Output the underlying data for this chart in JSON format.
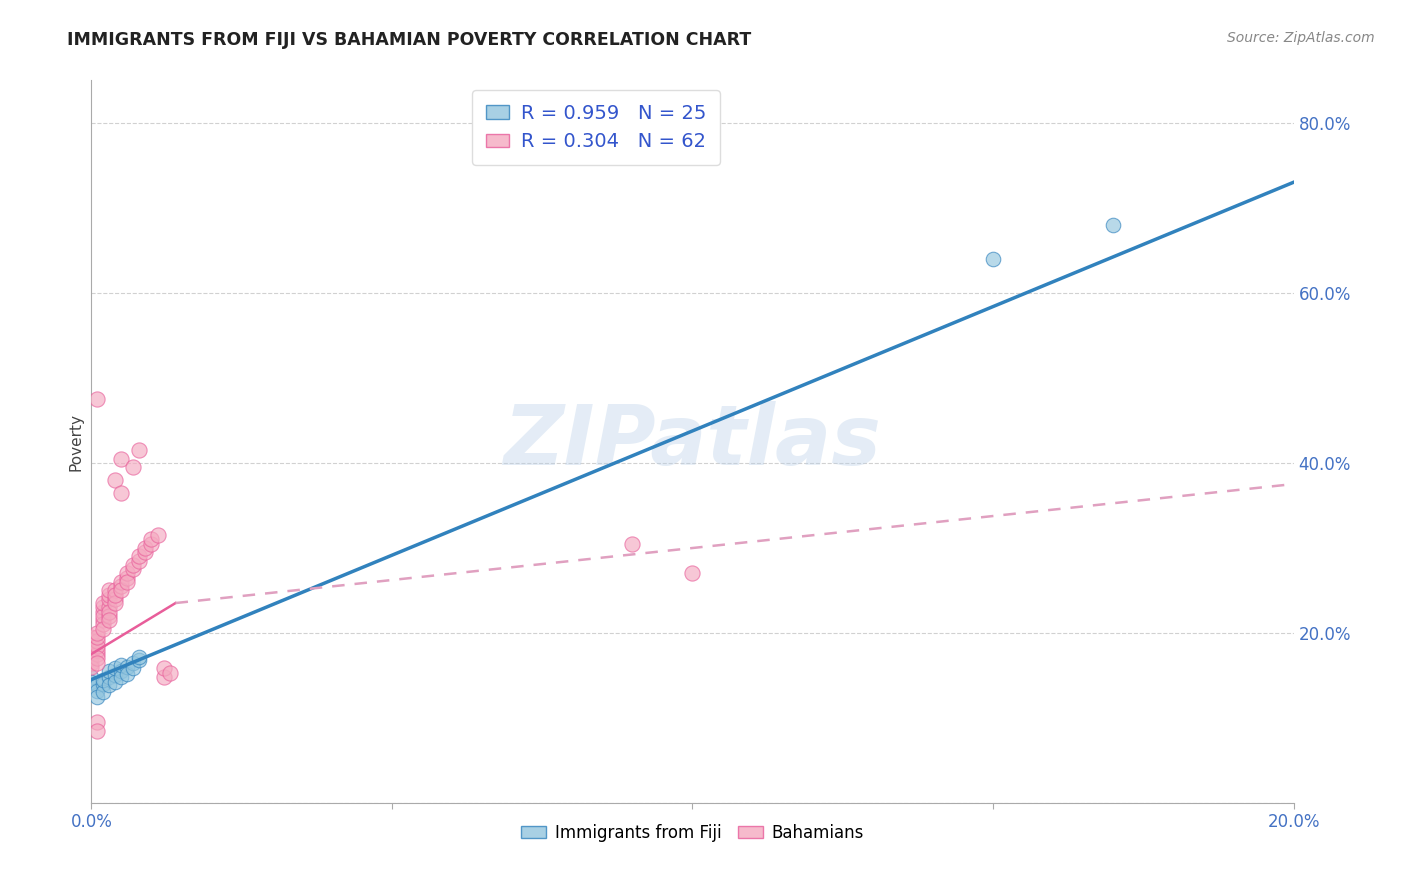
{
  "title": "IMMIGRANTS FROM FIJI VS BAHAMIAN POVERTY CORRELATION CHART",
  "source": "Source: ZipAtlas.com",
  "ylabel_label": "Poverty",
  "x_min": 0.0,
  "x_max": 0.2,
  "y_min": 0.0,
  "y_max": 0.85,
  "color_fiji": "#92c5de",
  "color_bahamian": "#f4a9c0",
  "trendline_fiji_color": "#3182bd",
  "trendline_bahamian_solid_color": "#e85d9a",
  "trendline_bahamian_dashed_color": "#e0a0c0",
  "legend_R_fiji": "R = 0.959",
  "legend_N_fiji": "N = 25",
  "legend_R_bahamian": "R = 0.304",
  "legend_N_bahamian": "N = 62",
  "watermark": "ZIPatlas",
  "fiji_trendline": [
    0.0,
    0.145,
    0.2,
    0.73
  ],
  "bahamian_trendline_solid": [
    0.0,
    0.175,
    0.014,
    0.235
  ],
  "bahamian_trendline_dashed": [
    0.014,
    0.235,
    0.2,
    0.375
  ],
  "fiji_points": [
    [
      0.0,
      0.148
    ],
    [
      0.0,
      0.142
    ],
    [
      0.001,
      0.138
    ],
    [
      0.001,
      0.132
    ],
    [
      0.001,
      0.125
    ],
    [
      0.002,
      0.14
    ],
    [
      0.002,
      0.13
    ],
    [
      0.002,
      0.145
    ],
    [
      0.003,
      0.148
    ],
    [
      0.003,
      0.138
    ],
    [
      0.003,
      0.155
    ],
    [
      0.004,
      0.15
    ],
    [
      0.004,
      0.142
    ],
    [
      0.004,
      0.158
    ],
    [
      0.005,
      0.155
    ],
    [
      0.005,
      0.148
    ],
    [
      0.005,
      0.162
    ],
    [
      0.006,
      0.16
    ],
    [
      0.006,
      0.152
    ],
    [
      0.007,
      0.165
    ],
    [
      0.007,
      0.158
    ],
    [
      0.008,
      0.168
    ],
    [
      0.008,
      0.172
    ],
    [
      0.15,
      0.64
    ],
    [
      0.17,
      0.68
    ]
  ],
  "bahamian_points": [
    [
      0.0,
      0.18
    ],
    [
      0.0,
      0.175
    ],
    [
      0.0,
      0.185
    ],
    [
      0.0,
      0.165
    ],
    [
      0.0,
      0.195
    ],
    [
      0.0,
      0.17
    ],
    [
      0.0,
      0.16
    ],
    [
      0.0,
      0.19
    ],
    [
      0.001,
      0.175
    ],
    [
      0.001,
      0.18
    ],
    [
      0.001,
      0.19
    ],
    [
      0.001,
      0.185
    ],
    [
      0.001,
      0.17
    ],
    [
      0.001,
      0.195
    ],
    [
      0.001,
      0.2
    ],
    [
      0.001,
      0.165
    ],
    [
      0.001,
      0.475
    ],
    [
      0.001,
      0.095
    ],
    [
      0.001,
      0.085
    ],
    [
      0.002,
      0.215
    ],
    [
      0.002,
      0.225
    ],
    [
      0.002,
      0.21
    ],
    [
      0.002,
      0.23
    ],
    [
      0.002,
      0.22
    ],
    [
      0.002,
      0.205
    ],
    [
      0.002,
      0.235
    ],
    [
      0.003,
      0.23
    ],
    [
      0.003,
      0.22
    ],
    [
      0.003,
      0.24
    ],
    [
      0.003,
      0.225
    ],
    [
      0.003,
      0.215
    ],
    [
      0.003,
      0.245
    ],
    [
      0.003,
      0.25
    ],
    [
      0.004,
      0.24
    ],
    [
      0.004,
      0.25
    ],
    [
      0.004,
      0.235
    ],
    [
      0.004,
      0.245
    ],
    [
      0.004,
      0.38
    ],
    [
      0.005,
      0.255
    ],
    [
      0.005,
      0.26
    ],
    [
      0.005,
      0.25
    ],
    [
      0.005,
      0.365
    ],
    [
      0.005,
      0.405
    ],
    [
      0.006,
      0.265
    ],
    [
      0.006,
      0.27
    ],
    [
      0.006,
      0.26
    ],
    [
      0.007,
      0.275
    ],
    [
      0.007,
      0.28
    ],
    [
      0.007,
      0.395
    ],
    [
      0.008,
      0.285
    ],
    [
      0.008,
      0.29
    ],
    [
      0.008,
      0.415
    ],
    [
      0.009,
      0.295
    ],
    [
      0.009,
      0.3
    ],
    [
      0.01,
      0.305
    ],
    [
      0.01,
      0.31
    ],
    [
      0.011,
      0.315
    ],
    [
      0.012,
      0.148
    ],
    [
      0.012,
      0.158
    ],
    [
      0.013,
      0.153
    ],
    [
      0.09,
      0.305
    ],
    [
      0.1,
      0.27
    ]
  ]
}
